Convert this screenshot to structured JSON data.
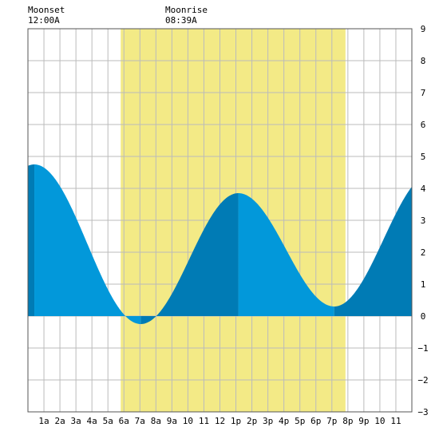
{
  "chart_data": {
    "type": "area",
    "title": "",
    "xlabel": "",
    "ylabel": "",
    "x_unit": "hours",
    "xlim": [
      0,
      24
    ],
    "ylim": [
      -3,
      9
    ],
    "y_ticks": [
      -3,
      -2,
      -1,
      0,
      1,
      2,
      3,
      4,
      5,
      6,
      7,
      8,
      9
    ],
    "x_ticks": [
      {
        "x": 1,
        "label": "1a"
      },
      {
        "x": 2,
        "label": "2a"
      },
      {
        "x": 3,
        "label": "3a"
      },
      {
        "x": 4,
        "label": "4a"
      },
      {
        "x": 5,
        "label": "5a"
      },
      {
        "x": 6,
        "label": "6a"
      },
      {
        "x": 7,
        "label": "7a"
      },
      {
        "x": 8,
        "label": "8a"
      },
      {
        "x": 9,
        "label": "9a"
      },
      {
        "x": 10,
        "label": "10"
      },
      {
        "x": 11,
        "label": "11"
      },
      {
        "x": 12,
        "label": "12"
      },
      {
        "x": 13,
        "label": "1p"
      },
      {
        "x": 14,
        "label": "2p"
      },
      {
        "x": 15,
        "label": "3p"
      },
      {
        "x": 16,
        "label": "4p"
      },
      {
        "x": 17,
        "label": "5p"
      },
      {
        "x": 18,
        "label": "6p"
      },
      {
        "x": 19,
        "label": "7p"
      },
      {
        "x": 20,
        "label": "8p"
      },
      {
        "x": 21,
        "label": "9p"
      },
      {
        "x": 22,
        "label": "10"
      },
      {
        "x": 23,
        "label": "11"
      }
    ],
    "daylight": [
      5.8,
      19.85
    ],
    "tide_extremes": [
      {
        "x": 0.4,
        "y": 4.75
      },
      {
        "x": 7.05,
        "y": -0.25
      },
      {
        "x": 13.15,
        "y": 3.85
      },
      {
        "x": 19.15,
        "y": 0.3
      },
      {
        "x": 25.3,
        "y": 4.5
      }
    ],
    "shading_bands": [
      {
        "from": 0,
        "to": 0.4,
        "tone": "dark"
      },
      {
        "from": 0.4,
        "to": 7.05,
        "tone": "light"
      },
      {
        "from": 7.05,
        "to": 13.15,
        "tone": "dark"
      },
      {
        "from": 13.15,
        "to": 19.15,
        "tone": "light"
      },
      {
        "from": 19.15,
        "to": 24,
        "tone": "dark"
      }
    ],
    "grid": true,
    "colors": {
      "daylight": "#f3ea86",
      "tide_light": "#0298da",
      "tide_dark": "#007bb5",
      "grid": "#bbbbbb",
      "axis": "#555555"
    }
  },
  "moon": {
    "moonset": {
      "label": "Moonset",
      "time": "12:00A",
      "x": 0
    },
    "moonrise": {
      "label": "Moonrise",
      "time": "08:39A",
      "x": 8.65
    }
  }
}
